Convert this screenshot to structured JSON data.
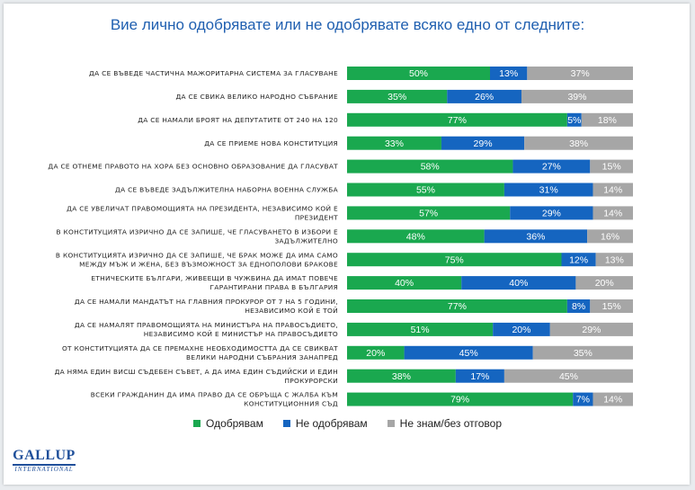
{
  "chart_data": {
    "type": "bar",
    "orientation": "horizontal",
    "stacked": true,
    "title": "Вие лично одобрявате или не одобрявате всяко едно от следните:",
    "categories": [
      [
        "ДА СЕ ВЪВЕДЕ ЧАСТИЧНА МАЖОРИТАРНА СИСТЕМА ЗА ГЛАСУВАНЕ"
      ],
      [
        "ДА СЕ СВИКА ВЕЛИКО НАРОДНО СЪБРАНИЕ"
      ],
      [
        "ДА СЕ НАМАЛИ БРОЯТ НА ДЕПУТАТИТЕ ОТ 240 НА 120"
      ],
      [
        "ДА СЕ ПРИЕМЕ НОВА КОНСТИТУЦИЯ"
      ],
      [
        "ДА СЕ ОТНЕМЕ ПРАВОТО НА ХОРА БЕЗ ОСНОВНО ОБРАЗОВАНИЕ ДА ГЛАСУВАТ"
      ],
      [
        "ДА СЕ ВЪВЕДЕ ЗАДЪЛЖИТЕЛНА НАБОРНА ВОЕННА СЛУЖБА"
      ],
      [
        "ДА СЕ УВЕЛИЧАТ ПРАВОМОЩИЯТА НА ПРЕЗИДЕНТА, НЕЗАВИСИМО КОЙ Е",
        "ПРЕЗИДЕНТ"
      ],
      [
        "В КОНСТИТУЦИЯТА ИЗРИЧНО ДА СЕ ЗАПИШЕ, ЧЕ ГЛАСУВАНЕТО В ИЗБОРИ Е",
        "ЗАДЪЛЖИТЕЛНО"
      ],
      [
        "В КОНСТИТУЦИЯТА ИЗРИЧНО ДА СЕ ЗАПИШЕ, ЧЕ БРАК МОЖЕ ДА ИМА САМО",
        "МЕЖДУ МЪЖ И ЖЕНА, БЕЗ ВЪЗМОЖНОСТ ЗА ЕДНОПОЛОВИ БРАКОВЕ"
      ],
      [
        "ЕТНИЧЕСКИТЕ БЪЛГАРИ, ЖИВЕЕЩИ В ЧУЖБИНА ДА ИМАТ ПОВЕЧЕ",
        "ГАРАНТИРАНИ ПРАВА В БЪЛГАРИЯ"
      ],
      [
        "ДА СЕ НАМАЛИ МАНДАТЪТ НА ГЛАВНИЯ ПРОКУРОР ОТ 7 НА 5 ГОДИНИ,",
        "НЕЗАВИСИМО КОЙ Е ТОЙ"
      ],
      [
        "ДА СЕ НАМАЛЯТ ПРАВОМОЩИЯТА НА МИНИСТЪРА НА ПРАВОСЪДИЕТО,",
        "НЕЗАВИСИМО КОЙ Е МИНИСТЪР НА ПРАВОСЪДИЕТО"
      ],
      [
        "ОТ КОНСТИТУЦИЯТА ДА СЕ ПРЕМАХНЕ НЕОБХОДИМОСТТА ДА СЕ СВИКВАТ",
        "ВЕЛИКИ НАРОДНИ СЪБРАНИЯ ЗАНАПРЕД"
      ],
      [
        "ДА НЯМА ЕДИН ВИСШ СЪДЕБЕН СЪВЕТ, А ДА ИМА ЕДИН СЪДИЙСКИ И ЕДИН",
        "ПРОКУРОРСКИ"
      ],
      [
        "ВСЕКИ ГРАЖДАНИН ДА ИМА ПРАВО ДА СЕ ОБРЪЩА С ЖАЛБА КЪМ",
        "КОНСТИТУЦИОННИЯ СЪД"
      ]
    ],
    "series": [
      {
        "name": "Одобрявам",
        "color": "#1aa84f",
        "values": [
          50,
          35,
          77,
          33,
          58,
          55,
          57,
          48,
          75,
          40,
          77,
          51,
          20,
          38,
          79
        ]
      },
      {
        "name": "Не одобрявам",
        "color": "#1565c0",
        "values": [
          13,
          26,
          5,
          29,
          27,
          31,
          29,
          36,
          12,
          40,
          8,
          20,
          45,
          17,
          7
        ]
      },
      {
        "name": "Не знам/без отговор",
        "color": "#a6a6a6",
        "values": [
          37,
          39,
          18,
          38,
          15,
          14,
          14,
          16,
          13,
          20,
          15,
          29,
          35,
          45,
          14
        ]
      }
    ],
    "value_suffix": "%",
    "xlim": [
      0,
      100
    ],
    "legend_position": "bottom",
    "grid": false
  },
  "logo": {
    "main": "GALLUP",
    "sub": "INTERNATIONAL"
  }
}
